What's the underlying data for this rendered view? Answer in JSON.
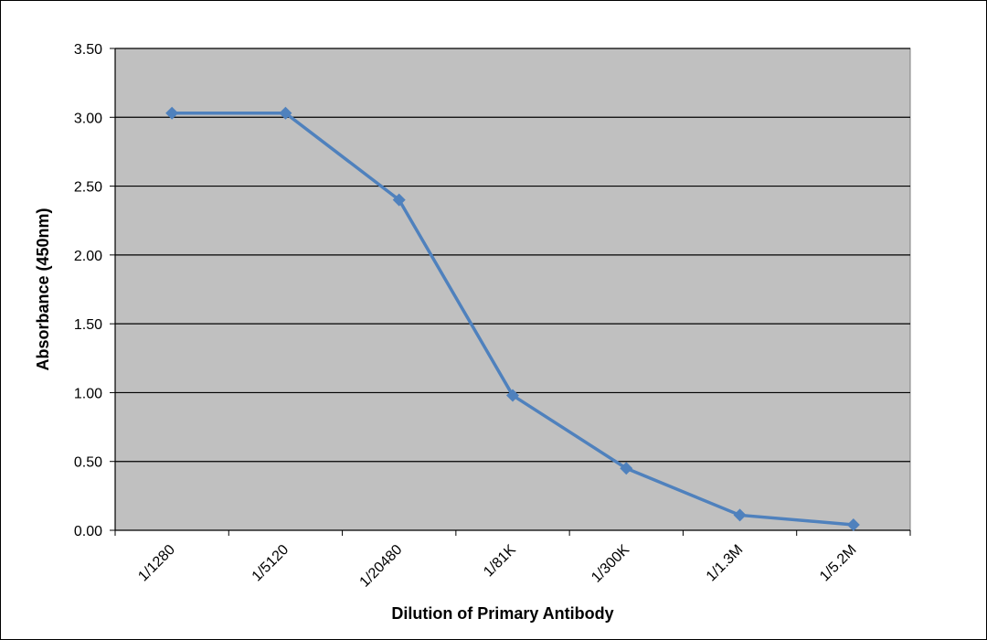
{
  "chart_data": {
    "type": "line",
    "title": "",
    "xlabel": "Dilution of Primary Antibody",
    "ylabel": "Absorbance (450nm)",
    "categories": [
      "1/1280",
      "1/5120",
      "1/20480",
      "1/81K",
      "1/300K",
      "1/1.3M",
      "1/5.2M"
    ],
    "series": [
      {
        "values": [
          3.03,
          3.03,
          2.4,
          0.98,
          0.45,
          0.11,
          0.04
        ]
      }
    ],
    "ylim": [
      0,
      3.5
    ],
    "yticks": [
      "0.00",
      "0.50",
      "1.00",
      "1.50",
      "2.00",
      "2.50",
      "3.00",
      "3.50"
    ],
    "grid": true,
    "legend": "none",
    "colors": {
      "plot_background": "#c0c0c0",
      "series": "#4f81bd",
      "gridline": "#000000"
    }
  }
}
